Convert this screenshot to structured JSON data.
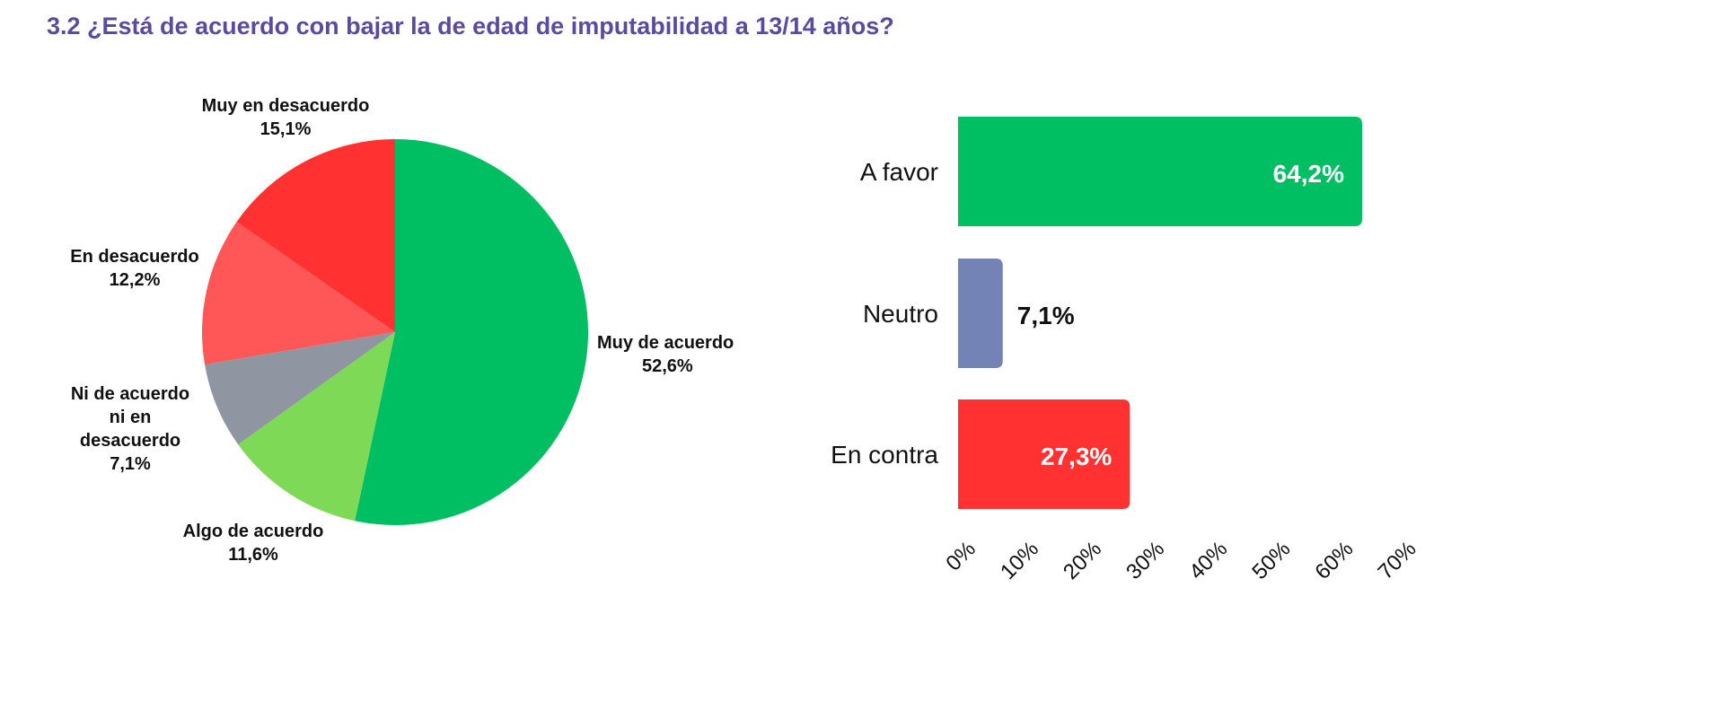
{
  "title": "3.2 ¿Está de acuerdo con bajar la de edad de imputabilidad a 13/14 años?",
  "chart_data": [
    {
      "type": "pie",
      "slices": [
        {
          "label": "Muy de acuerdo",
          "value": 52.6,
          "display": "52,6%",
          "color": "#00bf63"
        },
        {
          "label": "Algo de acuerdo",
          "value": 11.6,
          "display": "11,6%",
          "color": "#7ed957"
        },
        {
          "label": "Ni de acuerdo ni en desacuerdo",
          "value": 7.1,
          "display": "7,1%",
          "color": "#9096a1"
        },
        {
          "label": "En desacuerdo",
          "value": 12.2,
          "display": "12,2%",
          "color": "#ff5757"
        },
        {
          "label": "Muy en desacuerdo",
          "value": 15.1,
          "display": "15,1%",
          "color": "#ff3131"
        }
      ]
    },
    {
      "type": "bar",
      "orientation": "horizontal",
      "categories": [
        "A favor",
        "Neutro",
        "En contra"
      ],
      "values": [
        64.2,
        7.1,
        27.3
      ],
      "labels": [
        "64,2%",
        "7,1%",
        "27,3%"
      ],
      "colors": [
        "#00bf63",
        "#7483b5",
        "#ff3131"
      ],
      "xlim": [
        0,
        70
      ],
      "xticks": [
        "0%",
        "10%",
        "20%",
        "30%",
        "40%",
        "50%",
        "60%",
        "70%"
      ]
    }
  ]
}
